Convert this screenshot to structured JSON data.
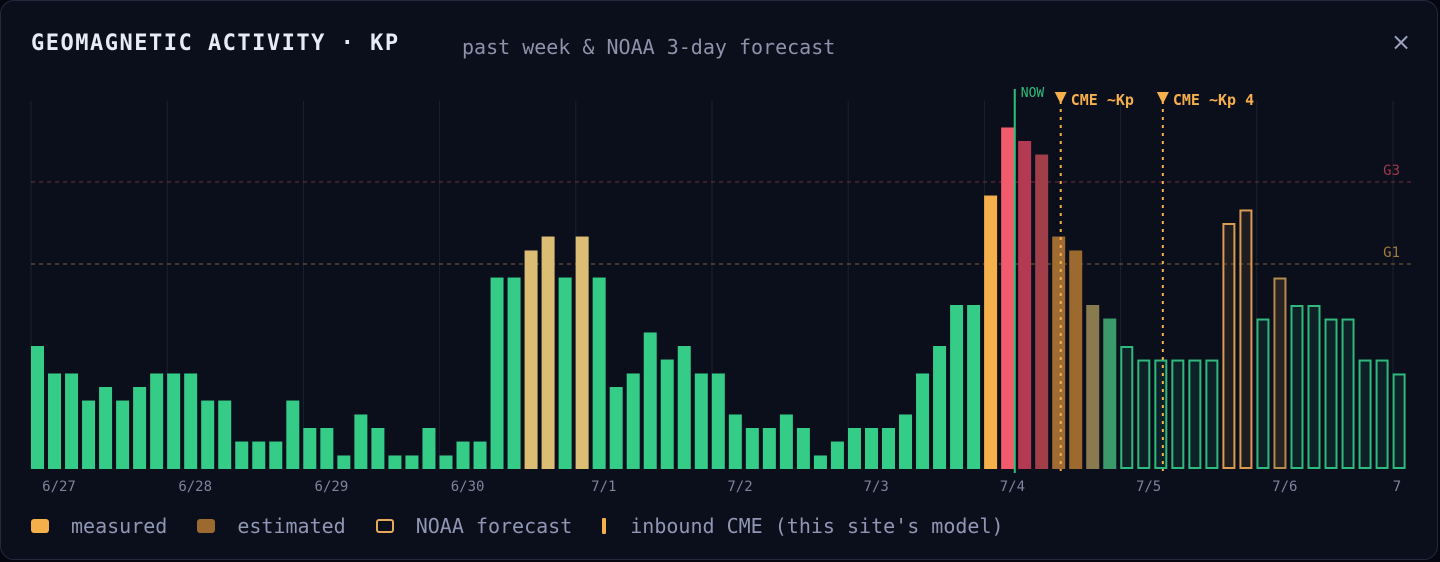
{
  "header": {
    "title": "GEOMAGNETIC ACTIVITY · KP",
    "subtitle": "past week & NOAA 3-day forecast",
    "close_label": "×"
  },
  "legend": {
    "measured": "measured",
    "estimated": "estimated",
    "forecast": "NOAA forecast",
    "cme": "inbound CME (this site's model)"
  },
  "colors": {
    "quiet": "#35cc88",
    "unsettled": "#dcbd74",
    "active": "#f6b04b",
    "storm": "#f25b6b",
    "estimated": "#9c6a2e",
    "cme": "#f6b04b",
    "now": "#2fc07a",
    "g3": "#a03a4c",
    "g1": "#a57a3e"
  },
  "chart_data": {
    "type": "bar",
    "bar_interval_hours": 3,
    "ylim": [
      0,
      9
    ],
    "days": [
      "6/27",
      "6/28",
      "6/29",
      "6/30",
      "7/1",
      "7/2",
      "7/3",
      "7/4",
      "7/5",
      "7/6",
      "7"
    ],
    "measured": [
      3,
      2.33,
      2.33,
      1.67,
      2,
      1.67,
      2,
      2.33,
      2.33,
      2.33,
      1.67,
      1.67,
      0.67,
      0.67,
      0.67,
      1.67,
      1,
      1,
      0.33,
      1.33,
      1,
      0.33,
      0.33,
      1,
      0.33,
      0.67,
      0.67,
      4.67,
      4.67,
      5.33,
      5.67,
      4.67,
      5.67,
      4.67,
      2,
      2.33,
      3.33,
      2.67,
      3,
      2.33,
      2.33,
      1.33,
      1,
      1,
      1.33,
      1,
      0.33,
      0.67,
      1,
      1,
      1,
      1.33,
      2.33,
      3,
      4,
      4,
      6.67,
      8.33
    ],
    "estimated": [
      8,
      7.67,
      5.67,
      5.33,
      4,
      3.67
    ],
    "forecast": [
      3,
      2.67,
      2.67,
      2.67,
      2.67,
      2.67,
      6,
      6.33,
      3.67,
      4.67,
      4,
      4,
      3.67,
      3.67,
      2.67,
      2.67,
      2.33
    ],
    "now_label": "NOW",
    "now_kp_position": 57.8,
    "cme_events": [
      {
        "label": "CME ~Kp",
        "position": 60.5
      },
      {
        "label": "CME ~Kp 4",
        "position": 66.5
      }
    ],
    "thresholds": [
      {
        "label": "G3",
        "kp": 7
      },
      {
        "label": "G1",
        "kp": 5
      }
    ]
  }
}
